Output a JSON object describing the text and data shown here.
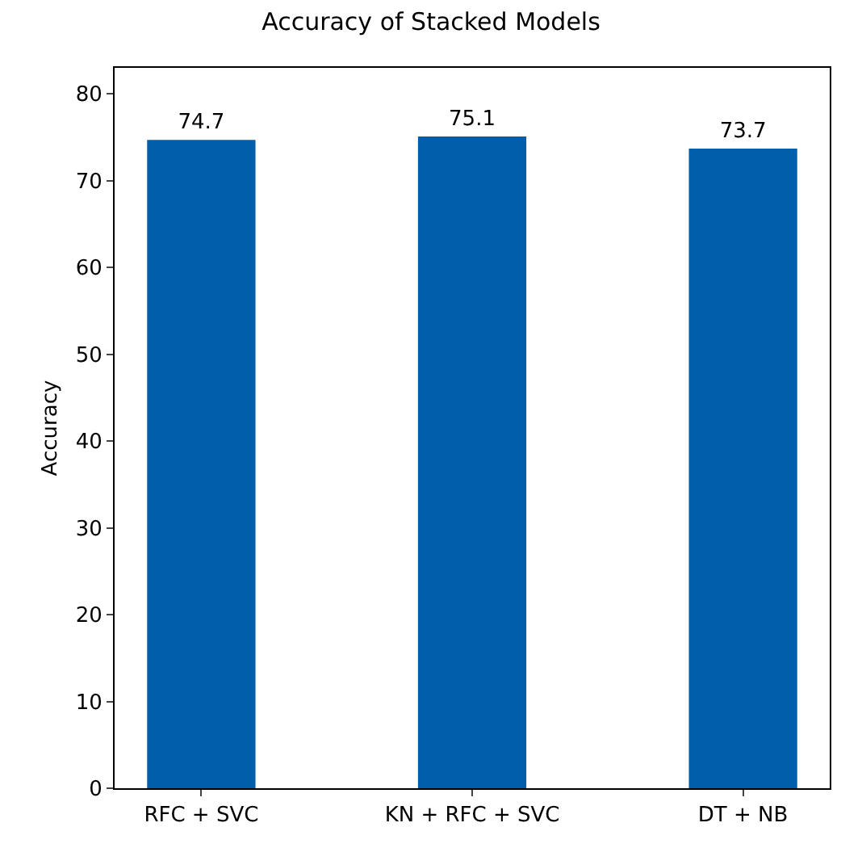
{
  "chart_data": {
    "type": "bar",
    "title": "Accuracy of Stacked Models",
    "ylabel": "Accuracy",
    "categories": [
      "RFC + SVC",
      "KN + RFC + SVC",
      "DT + NB"
    ],
    "values": [
      74.7,
      75.1,
      73.7
    ],
    "color": "#005eaa",
    "ylim": [
      0,
      83
    ],
    "yticks": [
      0,
      10,
      20,
      30,
      40,
      50,
      60,
      70,
      80
    ],
    "grid": false,
    "data_labels": true
  }
}
